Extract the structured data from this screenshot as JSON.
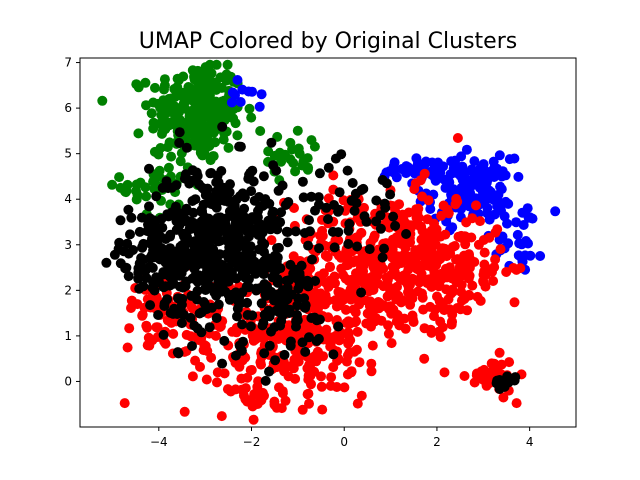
{
  "chart_data": {
    "type": "scatter",
    "title": "UMAP Colored by Original Clusters",
    "xlabel": "",
    "ylabel": "",
    "xlim": [
      -5.7,
      5.0
    ],
    "ylim": [
      -1.0,
      7.1
    ],
    "xticks": [
      -4,
      -2,
      0,
      2,
      4
    ],
    "yticks": [
      0,
      1,
      2,
      3,
      4,
      5,
      6,
      7
    ],
    "grid": false,
    "legend": "none",
    "series": [
      {
        "color": "#008000",
        "clusters": [
          {
            "cx": -3.2,
            "cy": 5.9,
            "sx": 0.5,
            "sy": 0.55,
            "n": 260
          },
          {
            "cx": -4.0,
            "cy": 4.3,
            "sx": 0.4,
            "sy": 0.4,
            "n": 40
          },
          {
            "cx": -1.1,
            "cy": 5.0,
            "sx": 0.4,
            "sy": 0.25,
            "n": 25
          }
        ]
      },
      {
        "color": "#0000ff",
        "clusters": [
          {
            "cx": 2.7,
            "cy": 4.2,
            "sx": 0.45,
            "sy": 0.35,
            "n": 150
          },
          {
            "cx": 1.6,
            "cy": 4.6,
            "sx": 0.5,
            "sy": 0.15,
            "n": 40
          },
          {
            "cx": 3.8,
            "cy": 3.2,
            "sx": 0.25,
            "sy": 0.4,
            "n": 30
          },
          {
            "cx": -2.2,
            "cy": 6.2,
            "sx": 0.2,
            "sy": 0.2,
            "n": 10
          }
        ]
      },
      {
        "color": "#ff0000",
        "clusters": [
          {
            "cx": 0.8,
            "cy": 2.6,
            "sx": 1.0,
            "sy": 0.8,
            "n": 420
          },
          {
            "cx": -1.2,
            "cy": 1.0,
            "sx": 1.1,
            "sy": 0.7,
            "n": 300
          },
          {
            "cx": -3.8,
            "cy": 1.6,
            "sx": 0.5,
            "sy": 0.35,
            "n": 60
          },
          {
            "cx": 2.3,
            "cy": 2.5,
            "sx": 0.6,
            "sy": 0.6,
            "n": 120
          },
          {
            "cx": 3.2,
            "cy": 0.1,
            "sx": 0.25,
            "sy": 0.2,
            "n": 40
          },
          {
            "cx": -1.9,
            "cy": -0.3,
            "sx": 0.25,
            "sy": 0.25,
            "n": 20
          }
        ]
      },
      {
        "color": "#000000",
        "clusters": [
          {
            "cx": -2.7,
            "cy": 3.0,
            "sx": 0.75,
            "sy": 0.9,
            "n": 520
          },
          {
            "cx": -1.3,
            "cy": 1.6,
            "sx": 0.6,
            "sy": 0.6,
            "n": 80
          },
          {
            "cx": 0.2,
            "cy": 3.8,
            "sx": 0.6,
            "sy": 0.5,
            "n": 50
          },
          {
            "cx": -4.2,
            "cy": 2.8,
            "sx": 0.4,
            "sy": 0.5,
            "n": 60
          },
          {
            "cx": 3.5,
            "cy": 0.0,
            "sx": 0.12,
            "sy": 0.08,
            "n": 12
          }
        ]
      }
    ]
  }
}
